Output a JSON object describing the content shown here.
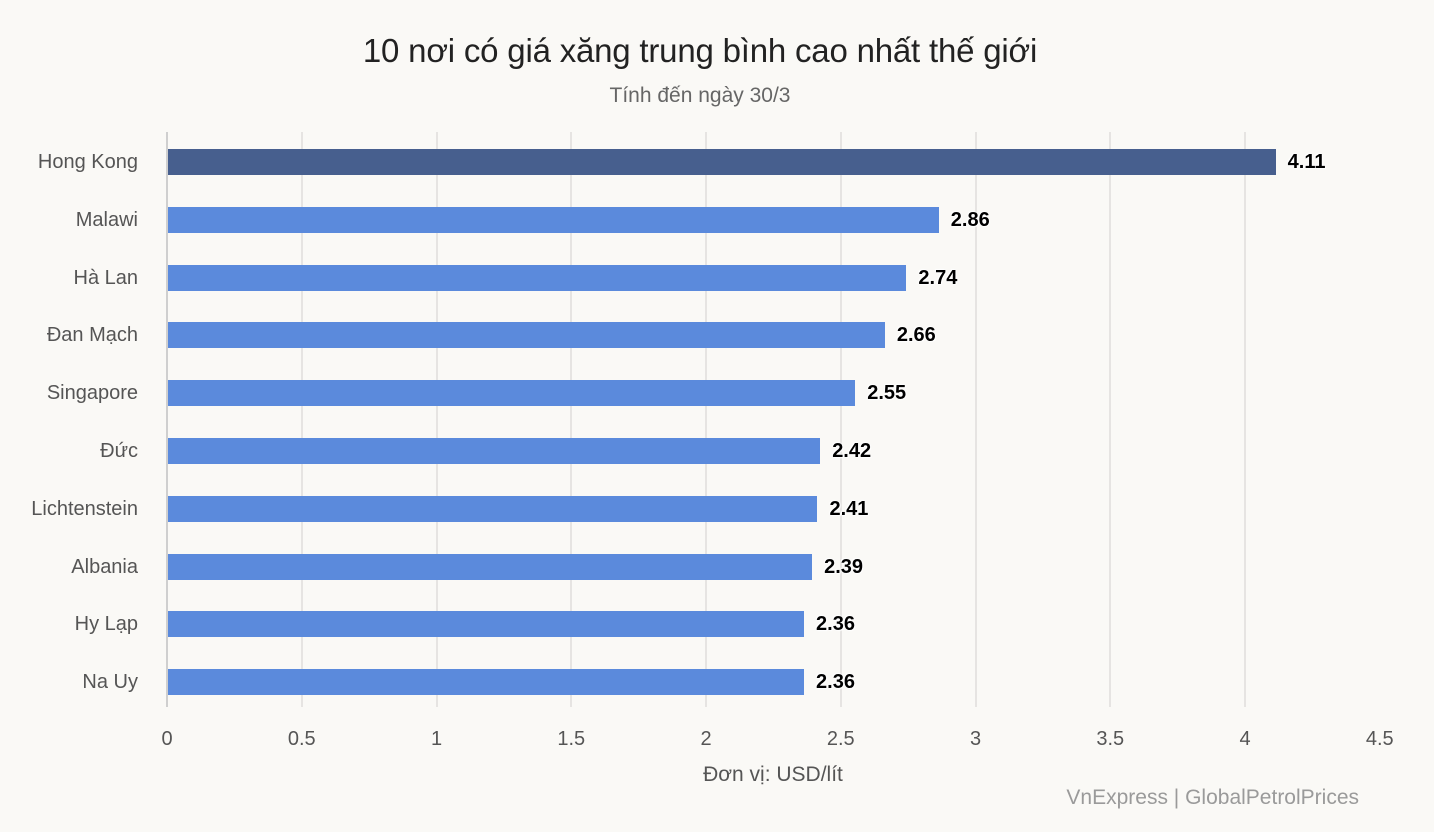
{
  "header": {
    "title": "10 nơi có giá xăng trung bình cao nhất thế giới",
    "subtitle": "Tính đến ngày 30/3"
  },
  "footer": {
    "unit_label": "Đơn vị: USD/lít",
    "source": "VnExpress | GlobalPetrolPrices"
  },
  "colors": {
    "highlight_bar": "#475f8e",
    "bar": "#5b8adc",
    "gridline": "#e6e4e2",
    "background": "#faf9f6"
  },
  "chart_data": {
    "type": "bar",
    "orientation": "horizontal",
    "title": "10 nơi có giá xăng trung bình cao nhất thế giới",
    "subtitle": "Tính đến ngày 30/3",
    "xlabel": "Đơn vị: USD/lít",
    "ylabel": "",
    "categories": [
      "Hong Kong",
      "Malawi",
      "Hà Lan",
      "Đan Mạch",
      "Singapore",
      "Đức",
      "Lichtenstein",
      "Albania",
      "Hy Lạp",
      "Na Uy"
    ],
    "values": [
      4.11,
      2.86,
      2.74,
      2.66,
      2.55,
      2.42,
      2.41,
      2.39,
      2.36,
      2.36
    ],
    "value_labels": [
      "4.11",
      "2.86",
      "2.74",
      "2.66",
      "2.55",
      "2.42",
      "2.41",
      "2.39",
      "2.36",
      "2.36"
    ],
    "highlighted": [
      "Hong Kong"
    ],
    "xlim": [
      0,
      4.5
    ],
    "xticks": [
      "0",
      "0.5",
      "1",
      "1.5",
      "2",
      "2.5",
      "3",
      "3.5",
      "4",
      "4.5"
    ],
    "grid": "vertical",
    "legend": null,
    "source": "VnExpress | GlobalPetrolPrices"
  }
}
